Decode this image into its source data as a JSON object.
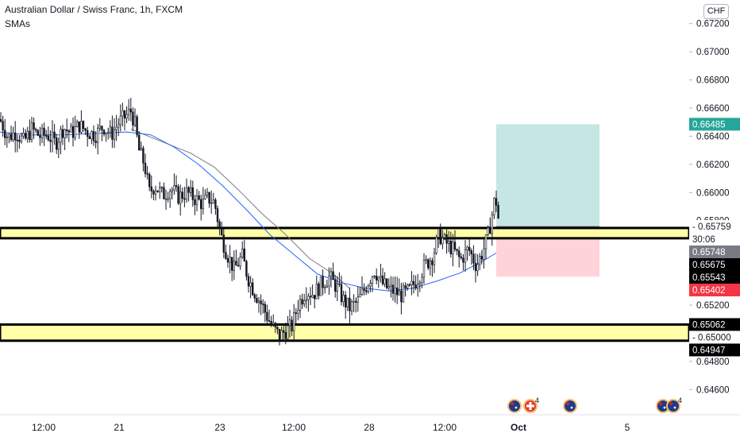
{
  "header": {
    "title": "Australian Dollar / Swiss Franc, 1h, FXCM",
    "indicator": "SMAs",
    "currency": "CHF"
  },
  "colors": {
    "up": "#131722",
    "down": "#131722",
    "sma": "#2962ff",
    "zone_fill": "#ffff99",
    "zone_border": "#000000",
    "target_fill": "#b2dfdb",
    "stop_fill": "#ffcdd2",
    "price_label": "#787b86",
    "target_label": "#26a69a",
    "stop_label": "#f23645",
    "level_label": "#000000"
  },
  "chart_data": {
    "type": "candlestick",
    "title": "Australian Dollar / Swiss Franc, 1h, FXCM",
    "ylim": [
      0.645,
      0.673
    ],
    "y_ticks": [
      "0.67200",
      "0.67000",
      "0.66800",
      "0.66600",
      "0.66400",
      "0.66200",
      "0.66000",
      "0.65800",
      "0.65600",
      "0.65400",
      "0.65200",
      "0.65000",
      "0.64800",
      "0.64600"
    ],
    "x_ticks": [
      "12:00",
      "21",
      "23",
      "12:00",
      "28",
      "12:00",
      "Oct",
      "5"
    ],
    "price_path": [
      [
        0,
        0.6652
      ],
      [
        10,
        0.6639
      ],
      [
        20,
        0.6643
      ],
      [
        30,
        0.6636
      ],
      [
        40,
        0.6645
      ],
      [
        50,
        0.664
      ],
      [
        60,
        0.6641
      ],
      [
        70,
        0.6635
      ],
      [
        80,
        0.6646
      ],
      [
        90,
        0.6642
      ],
      [
        100,
        0.6648
      ],
      [
        110,
        0.6643
      ],
      [
        120,
        0.6641
      ],
      [
        130,
        0.6647
      ],
      [
        140,
        0.6641
      ],
      [
        150,
        0.665
      ],
      [
        160,
        0.6655
      ],
      [
        165,
        0.6658
      ],
      [
        170,
        0.6648
      ],
      [
        175,
        0.663
      ],
      [
        182,
        0.662
      ],
      [
        188,
        0.66
      ],
      [
        195,
        0.6605
      ],
      [
        205,
        0.6598
      ],
      [
        215,
        0.6603
      ],
      [
        225,
        0.6597
      ],
      [
        235,
        0.66
      ],
      [
        245,
        0.6596
      ],
      [
        255,
        0.6592
      ],
      [
        262,
        0.6596
      ],
      [
        270,
        0.6593
      ],
      [
        278,
        0.657
      ],
      [
        285,
        0.6558
      ],
      [
        295,
        0.6545
      ],
      [
        305,
        0.6555
      ],
      [
        312,
        0.654
      ],
      [
        320,
        0.653
      ],
      [
        330,
        0.652
      ],
      [
        338,
        0.651
      ],
      [
        345,
        0.6503
      ],
      [
        352,
        0.6498
      ],
      [
        360,
        0.6502
      ],
      [
        368,
        0.6505
      ],
      [
        375,
        0.652
      ],
      [
        385,
        0.653
      ],
      [
        395,
        0.6528
      ],
      [
        405,
        0.6535
      ],
      [
        415,
        0.654
      ],
      [
        425,
        0.6532
      ],
      [
        432,
        0.6524
      ],
      [
        440,
        0.6518
      ],
      [
        450,
        0.6522
      ],
      [
        458,
        0.653
      ],
      [
        465,
        0.6538
      ],
      [
        472,
        0.6545
      ],
      [
        480,
        0.6536
      ],
      [
        488,
        0.6532
      ],
      [
        495,
        0.653
      ],
      [
        505,
        0.6527
      ],
      [
        515,
        0.653
      ],
      [
        525,
        0.6538
      ],
      [
        535,
        0.6548
      ],
      [
        545,
        0.6555
      ],
      [
        553,
        0.657
      ],
      [
        560,
        0.6565
      ],
      [
        570,
        0.656
      ],
      [
        580,
        0.6552
      ],
      [
        590,
        0.656
      ],
      [
        600,
        0.6548
      ],
      [
        608,
        0.6558
      ],
      [
        615,
        0.657
      ],
      [
        620,
        0.6585
      ],
      [
        624,
        0.6598
      ],
      [
        628,
        0.658
      ],
      [
        630,
        0.6576
      ]
    ],
    "sma_path": [
      [
        0,
        0.6643
      ],
      [
        40,
        0.6641
      ],
      [
        80,
        0.6641
      ],
      [
        120,
        0.6642
      ],
      [
        160,
        0.6643
      ],
      [
        190,
        0.6641
      ],
      [
        220,
        0.6632
      ],
      [
        250,
        0.662
      ],
      [
        280,
        0.6605
      ],
      [
        310,
        0.6588
      ],
      [
        340,
        0.657
      ],
      [
        370,
        0.6556
      ],
      [
        400,
        0.6542
      ],
      [
        430,
        0.6536
      ],
      [
        460,
        0.6532
      ],
      [
        490,
        0.653
      ],
      [
        520,
        0.6532
      ],
      [
        550,
        0.6537
      ],
      [
        580,
        0.6543
      ],
      [
        610,
        0.6552
      ],
      [
        625,
        0.6557
      ]
    ],
    "sma2_path": [
      [
        165,
        0.6645
      ],
      [
        200,
        0.6637
      ],
      [
        240,
        0.6628
      ],
      [
        270,
        0.6618
      ],
      [
        300,
        0.6602
      ],
      [
        330,
        0.6585
      ],
      [
        360,
        0.657
      ],
      [
        390,
        0.6553
      ],
      [
        420,
        0.6542
      ],
      [
        440,
        0.6532
      ]
    ],
    "zones": [
      {
        "high": 0.65748,
        "low": 0.65675
      },
      {
        "high": 0.65062,
        "low": 0.64947
      }
    ],
    "position": {
      "x_start": 625,
      "x_end": 755,
      "entry": 0.65759,
      "target": 0.66485,
      "stop": 0.65402
    },
    "price_labels": [
      {
        "value": 0.66485,
        "text": "0.66485",
        "style": "target"
      },
      {
        "value": 0.65759,
        "text": "0.65759",
        "style": "plain"
      },
      {
        "value": 0.657,
        "text": "30:06",
        "style": "plain"
      },
      {
        "value": 0.65748,
        "text": "0.65748",
        "style": "price"
      },
      {
        "value": 0.65675,
        "text": "0.65675",
        "style": "level"
      },
      {
        "value": 0.65543,
        "text": "0.65543",
        "style": "level"
      },
      {
        "value": 0.65402,
        "text": "0.65402",
        "style": "stop"
      },
      {
        "value": 0.65062,
        "text": "0.65062",
        "style": "level"
      },
      {
        "value": 0.65,
        "text": "0.65000",
        "style": "plain"
      },
      {
        "value": 0.64947,
        "text": "0.64947",
        "style": "level"
      }
    ],
    "events": [
      {
        "x": 648,
        "flag": "AU",
        "count": ""
      },
      {
        "x": 668,
        "flag": "CH",
        "count": "4"
      },
      {
        "x": 718,
        "flag": "AU",
        "count": ""
      },
      {
        "x": 835,
        "flag": "AU",
        "count": ""
      },
      {
        "x": 848,
        "flag": "AU",
        "count": "4"
      }
    ]
  }
}
